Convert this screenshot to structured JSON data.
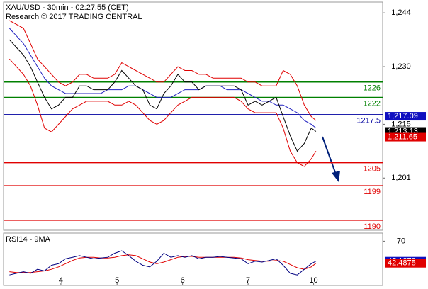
{
  "chart_data": [
    {
      "type": "line",
      "title": "XAU/USD - 30min - 02:27:55 (CET)",
      "subtitle": "Research © 2017 TRADING CENTRAL",
      "x": [
        5,
        11,
        17,
        23,
        29,
        35,
        41,
        47,
        53,
        59,
        65,
        71,
        77,
        83,
        89,
        95,
        101,
        107,
        113,
        119,
        125,
        131,
        137,
        143,
        149,
        155,
        161,
        167,
        173,
        179,
        185,
        191,
        197,
        203,
        209,
        215,
        221,
        227,
        233,
        239,
        245,
        251,
        257,
        263,
        267
      ],
      "xlim": [
        0,
        324
      ],
      "ylim": [
        1187.4,
        1246.8
      ],
      "yticks": [
        {
          "value": 1244,
          "label": "1,244"
        },
        {
          "value": 1230,
          "label": "1,230"
        },
        {
          "value": 1215,
          "label": "1,215"
        },
        {
          "value": 1201,
          "label": "1,201"
        }
      ],
      "series": [
        {
          "color": "#e00000",
          "values": [
            1242,
            1241,
            1240,
            1236,
            1232,
            1230,
            1228,
            1226,
            1225,
            1226,
            1228,
            1228,
            1227,
            1227,
            1227,
            1228,
            1231,
            1230,
            1229,
            1228,
            1227,
            1226,
            1226,
            1228,
            1230,
            1229,
            1229,
            1228,
            1228,
            1227,
            1227,
            1227,
            1227,
            1227,
            1226,
            1226,
            1225,
            1225,
            1225,
            1229,
            1228,
            1225,
            1220,
            1217,
            1216
          ]
        },
        {
          "color": "#e00000",
          "values": [
            1232,
            1230,
            1228,
            1225,
            1220,
            1214,
            1213,
            1215,
            1217,
            1219,
            1220,
            1221,
            1221,
            1221,
            1221,
            1220,
            1220,
            1221,
            1220,
            1218,
            1216,
            1215,
            1216,
            1218,
            1220,
            1221,
            1222,
            1222,
            1222,
            1222,
            1222,
            1222,
            1222,
            1221,
            1219,
            1218,
            1218,
            1218,
            1218,
            1214,
            1208,
            1205,
            1204,
            1206,
            1208
          ]
        },
        {
          "color": "#2020c0",
          "values": [
            1240,
            1238,
            1236,
            1233,
            1230,
            1227,
            1225,
            1224,
            1223,
            1223,
            1223,
            1223,
            1223,
            1223,
            1224,
            1224,
            1224,
            1225,
            1225,
            1224,
            1223,
            1222,
            1222,
            1222,
            1223,
            1224,
            1224,
            1224,
            1225,
            1225,
            1225,
            1224,
            1224,
            1224,
            1223,
            1222,
            1221,
            1221,
            1220,
            1220,
            1219,
            1218,
            1216,
            1215,
            1214
          ]
        },
        {
          "color": "#000000",
          "values": [
            1237,
            1235,
            1233,
            1230,
            1226,
            1222,
            1219,
            1220,
            1222,
            1222,
            1225,
            1225,
            1224,
            1224,
            1224,
            1226,
            1229,
            1227,
            1225,
            1224,
            1220,
            1219,
            1223,
            1225,
            1228,
            1226,
            1226,
            1224,
            1225,
            1225,
            1225,
            1225,
            1225,
            1224,
            1220,
            1221,
            1220,
            1221,
            1222,
            1217,
            1212,
            1208,
            1210,
            1214,
            1213.13
          ]
        }
      ],
      "levels": [
        {
          "value": 1226,
          "color": "#008000"
        },
        {
          "value": 1222,
          "color": "#008000"
        },
        {
          "value": 1217.5,
          "color": "#0000a0"
        },
        {
          "value": 1205,
          "color": "#e00000"
        },
        {
          "value": 1199,
          "color": "#e00000"
        },
        {
          "value": 1190,
          "color": "#e00000"
        }
      ],
      "tags": [
        {
          "value": 1217.09,
          "label": "1,217.09",
          "color": "#1010c0"
        },
        {
          "value": 1213.13,
          "label": "1,213.13",
          "color": "#000000"
        },
        {
          "value": 1211.65,
          "label": "1,211.65",
          "color": "#e00000"
        }
      ]
    },
    {
      "type": "line",
      "title": "RSI14 - 9MA",
      "x": [
        5,
        11,
        17,
        23,
        29,
        35,
        41,
        47,
        53,
        59,
        65,
        71,
        77,
        83,
        89,
        95,
        101,
        107,
        113,
        119,
        125,
        131,
        137,
        143,
        149,
        155,
        161,
        167,
        173,
        179,
        185,
        191,
        197,
        203,
        209,
        215,
        221,
        227,
        233,
        239,
        245,
        251,
        257,
        263,
        267
      ],
      "xlim": [
        0,
        324
      ],
      "xticks": [
        {
          "value": 49,
          "label": "4"
        },
        {
          "value": 97,
          "label": "5"
        },
        {
          "value": 153,
          "label": "6"
        },
        {
          "value": 209,
          "label": "7"
        },
        {
          "value": 265,
          "label": "10"
        }
      ],
      "ylim": [
        15,
        80
      ],
      "yticks": [
        70
      ],
      "series": [
        {
          "color": "#e00000",
          "values": [
            32,
            31,
            31,
            31,
            32,
            33,
            35,
            38,
            42,
            46,
            49,
            50,
            50,
            49,
            49,
            50,
            52,
            53,
            52,
            48,
            44,
            42,
            44,
            47,
            50,
            51,
            51,
            50,
            50,
            50,
            50,
            50,
            50,
            49,
            47,
            46,
            45,
            45,
            46,
            45,
            41,
            37,
            35,
            38,
            42.4875
          ]
        },
        {
          "color": "#000080",
          "values": [
            28,
            30,
            32,
            30,
            35,
            33,
            40,
            42,
            48,
            50,
            52,
            50,
            48,
            49,
            50,
            55,
            58,
            52,
            45,
            40,
            38,
            45,
            55,
            50,
            52,
            50,
            52,
            48,
            50,
            50,
            51,
            50,
            49,
            48,
            42,
            45,
            44,
            46,
            48,
            40,
            30,
            28,
            35,
            42,
            45.1272
          ]
        }
      ],
      "tags": [
        {
          "value": 45.1272,
          "label": "45.1272",
          "color": "#1010c0"
        },
        {
          "value": 42.4875,
          "label": "42.4875",
          "color": "#e00000"
        }
      ]
    }
  ]
}
